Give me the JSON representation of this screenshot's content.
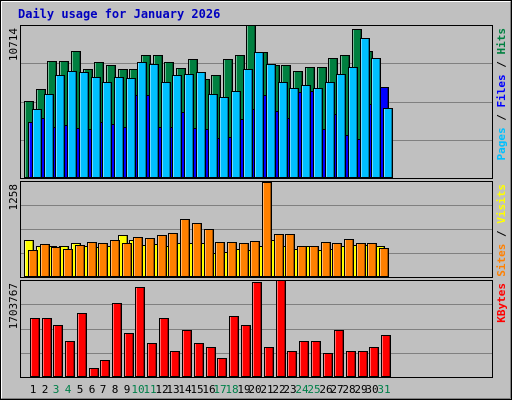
{
  "chart_data": {
    "type": "bar",
    "title": "Daily usage for January 2026",
    "categories": [
      "1",
      "2",
      "3",
      "4",
      "5",
      "6",
      "7",
      "8",
      "9",
      "10",
      "11",
      "12",
      "13",
      "14",
      "15",
      "16",
      "17",
      "18",
      "19",
      "20",
      "21",
      "22",
      "23",
      "24",
      "25",
      "26",
      "27",
      "28",
      "29",
      "30",
      "31"
    ],
    "weekend_days": [
      "3",
      "4",
      "10",
      "11",
      "17",
      "18",
      "24",
      "25",
      "31"
    ],
    "panels": [
      {
        "name": "hits-files-pages",
        "scale_label": "10714",
        "ymax": 10714,
        "legend": [
          {
            "text": "Pages",
            "color": "#00c0ff"
          },
          {
            "text": " / ",
            "color": "#000000"
          },
          {
            "text": "Files",
            "color": "#0000ff"
          },
          {
            "text": " / ",
            "color": "#000000"
          },
          {
            "text": "Hits",
            "color": "#008040"
          }
        ],
        "series": [
          {
            "name": "Hits",
            "color": "#008040",
            "values": [
              5400,
              6200,
              8200,
              8200,
              8900,
              7600,
              8100,
              7900,
              7600,
              7600,
              8600,
              8600,
              8100,
              7700,
              8300,
              6900,
              7200,
              8300,
              8600,
              10700,
              8800,
              7900,
              7900,
              7500,
              7800,
              7800,
              8400,
              8600,
              10400,
              8900,
              6200
            ]
          },
          {
            "name": "Files",
            "color": "#0000ff",
            "values": [
              3900,
              4200,
              3600,
              3700,
              3500,
              3400,
              3900,
              3800,
              3600,
              5800,
              5800,
              3600,
              3600,
              4600,
              3500,
              3400,
              2800,
              2900,
              4100,
              4800,
              5800,
              4700,
              4200,
              6000,
              6100,
              3400,
              4500,
              3000,
              2700,
              5200,
              6400
            ]
          },
          {
            "name": "Pages",
            "color": "#00c0ff",
            "values": [
              4800,
              5900,
              7200,
              7500,
              7400,
              7100,
              6700,
              7100,
              7000,
              8100,
              8000,
              6700,
              7200,
              7300,
              7400,
              5900,
              5700,
              6100,
              7600,
              8800,
              8000,
              6700,
              6300,
              6500,
              6300,
              6700,
              7300,
              7800,
              9800,
              8400,
              4900
            ]
          }
        ]
      },
      {
        "name": "visits-sites",
        "scale_label": "1258",
        "ymax": 1258,
        "legend": [
          {
            "text": "Sites",
            "color": "#ff8000"
          },
          {
            "text": " / ",
            "color": "#000000"
          },
          {
            "text": "Visits",
            "color": "#ffff00"
          }
        ],
        "series": [
          {
            "name": "Visits",
            "color": "#ffff00",
            "values": [
              480,
              410,
              410,
              410,
              440,
              400,
              390,
              410,
              550,
              480,
              420,
              430,
              400,
              440,
              450,
              450,
              310,
              330,
              370,
              360,
              400,
              490,
              400,
              370,
              410,
              360,
              370,
              400,
              420,
              420,
              400
            ]
          },
          {
            "name": "Sites",
            "color": "#ff8000",
            "values": [
              360,
              430,
              390,
              370,
              420,
              460,
              450,
              490,
              440,
              530,
              510,
              550,
              580,
              760,
              710,
              630,
              460,
              460,
              450,
              470,
              1250,
              570,
              570,
              400,
              410,
              460,
              450,
              500,
              450,
              450,
              380
            ]
          }
        ]
      },
      {
        "name": "kbytes",
        "scale_label": "1703767",
        "ymax": 1703767,
        "legend": [
          {
            "text": "KBytes",
            "color": "#ff0000"
          }
        ],
        "series": [
          {
            "name": "KBytes",
            "color": "#ff0000",
            "values": [
              1040000,
              1040000,
              920000,
              640000,
              1120000,
              160000,
              300000,
              1300000,
              780000,
              1580000,
              600000,
              1040000,
              460000,
              820000,
              600000,
              520000,
              340000,
              1080000,
              920000,
              1660000,
              520000,
              1703767,
              460000,
              640000,
              640000,
              420000,
              820000,
              460000,
              460000,
              520000,
              740000
            ]
          }
        ]
      }
    ]
  }
}
